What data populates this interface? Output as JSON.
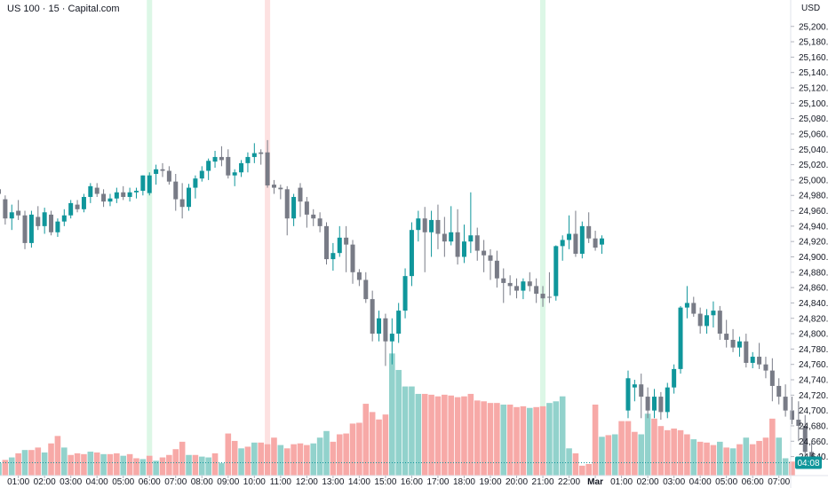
{
  "header": {
    "symbol": "US 100 · 15 · Capital.com",
    "currency": "USD"
  },
  "current_price": {
    "label": "04:08",
    "value": 24632,
    "color": "#0f969b"
  },
  "colors": {
    "up": "#0f969b",
    "down": "#787b86",
    "volume_up": "#92d2cc",
    "volume_down": "#f7a9a7",
    "session_highlight_up": "#dcf7e6",
    "session_highlight_down": "#fde1e1"
  },
  "chart_data": {
    "type": "candlestick",
    "title": "",
    "xlabel": "",
    "ylabel": "",
    "interval": "15",
    "ylim": [
      24610,
      25230
    ],
    "yticks": [
      24640,
      24660,
      24680,
      24700,
      24720,
      24740,
      24760,
      24780,
      24800,
      24820,
      24840,
      24860,
      24880,
      24900,
      24920,
      24940,
      24960,
      24980,
      25000,
      25020,
      25040,
      25060,
      25080,
      25100,
      25120,
      25140,
      25160,
      25180,
      25200
    ],
    "ytick_labels": [
      "24,640.0",
      "24,660.0",
      "24,680.0",
      "24,700.0",
      "24,720.0",
      "24,740.0",
      "24,760.0",
      "24,780.0",
      "24,800.0",
      "24,820.0",
      "24,840.0",
      "24,860.0",
      "24,880.0",
      "24,900.0",
      "24,920.0",
      "24,940.0",
      "24,960.0",
      "24,980.0",
      "25,000.0",
      "25,020.0",
      "25,040.0",
      "25,060.0",
      "25,080.0",
      "25,100.0",
      "25,120.0",
      "25,140.0",
      "25,160.0",
      "25,180.0",
      "25,200.0"
    ],
    "xticks": [
      {
        "label": "01:00",
        "bar": 3
      },
      {
        "label": "02:00",
        "bar": 7
      },
      {
        "label": "03:00",
        "bar": 11
      },
      {
        "label": "04:00",
        "bar": 15
      },
      {
        "label": "05:00",
        "bar": 19
      },
      {
        "label": "06:00",
        "bar": 23
      },
      {
        "label": "07:00",
        "bar": 27
      },
      {
        "label": "08:00",
        "bar": 31
      },
      {
        "label": "09:00",
        "bar": 35
      },
      {
        "label": "10:00",
        "bar": 39
      },
      {
        "label": "11:00",
        "bar": 43
      },
      {
        "label": "12:00",
        "bar": 47
      },
      {
        "label": "13:00",
        "bar": 51
      },
      {
        "label": "14:00",
        "bar": 55
      },
      {
        "label": "15:00",
        "bar": 59
      },
      {
        "label": "16:00",
        "bar": 63
      },
      {
        "label": "17:00",
        "bar": 67
      },
      {
        "label": "18:00",
        "bar": 71
      },
      {
        "label": "19:00",
        "bar": 75
      },
      {
        "label": "20:00",
        "bar": 79
      },
      {
        "label": "21:00",
        "bar": 83
      },
      {
        "label": "22:00",
        "bar": 87
      },
      {
        "label": "Mar",
        "bar": 91,
        "bold": true
      },
      {
        "label": "01:00",
        "bar": 95
      },
      {
        "label": "02:00",
        "bar": 99
      },
      {
        "label": "03:00",
        "bar": 103
      },
      {
        "label": "04:00",
        "bar": 107
      },
      {
        "label": "05:00",
        "bar": 111
      },
      {
        "label": "06:00",
        "bar": 115
      },
      {
        "label": "07:00",
        "bar": 119
      }
    ],
    "session_highlights": [
      {
        "bar": 23,
        "kind": "up"
      },
      {
        "bar": 41,
        "kind": "down"
      },
      {
        "bar": 83,
        "kind": "up"
      }
    ],
    "candles": [
      [
        24988,
        24996,
        24960,
        24982
      ],
      [
        24975,
        24980,
        24942,
        24950
      ],
      [
        24950,
        24968,
        24935,
        24958
      ],
      [
        24960,
        24974,
        24948,
        24954
      ],
      [
        24954,
        24960,
        24910,
        24918
      ],
      [
        24918,
        24960,
        24912,
        24955
      ],
      [
        24952,
        24966,
        24935,
        24940
      ],
      [
        24940,
        24964,
        24930,
        24958
      ],
      [
        24955,
        24960,
        24928,
        24932
      ],
      [
        24932,
        24950,
        24926,
        24946
      ],
      [
        24946,
        24962,
        24940,
        24954
      ],
      [
        24954,
        24974,
        24950,
        24970
      ],
      [
        24968,
        24974,
        24958,
        24962
      ],
      [
        24962,
        24982,
        24958,
        24978
      ],
      [
        24978,
        24996,
        24970,
        24992
      ],
      [
        24990,
        24996,
        24978,
        24982
      ],
      [
        24982,
        24988,
        24965,
        24972
      ],
      [
        24972,
        24982,
        24966,
        24976
      ],
      [
        24976,
        24990,
        24970,
        24984
      ],
      [
        24984,
        24992,
        24974,
        24978
      ],
      [
        24978,
        24990,
        24972,
        24984
      ],
      [
        24984,
        24990,
        24976,
        24986
      ],
      [
        24986,
        25006,
        24980,
        25006
      ],
      [
        24983,
        25010,
        24980,
        25006
      ],
      [
        25008,
        25020,
        24994,
        25014
      ],
      [
        25014,
        25022,
        25004,
        25012
      ],
      [
        25012,
        25018,
        24994,
        24998
      ],
      [
        24998,
        25008,
        24960,
        24975
      ],
      [
        24975,
        24996,
        24950,
        24965
      ],
      [
        24965,
        24995,
        24960,
        24990
      ],
      [
        24990,
        25006,
        24976,
        25002
      ],
      [
        25002,
        25018,
        24998,
        25012
      ],
      [
        25012,
        25028,
        25000,
        25025
      ],
      [
        25024,
        25038,
        25016,
        25030
      ],
      [
        25030,
        25044,
        25018,
        25026
      ],
      [
        25030,
        25040,
        25002,
        25006
      ],
      [
        25006,
        25014,
        24992,
        25010
      ],
      [
        25010,
        25026,
        25004,
        25022
      ],
      [
        25022,
        25036,
        25010,
        25030
      ],
      [
        25030,
        25048,
        25022,
        25035
      ],
      [
        25036,
        25040,
        25020,
        25034
      ],
      [
        25036,
        25052,
        24990,
        24993
      ],
      [
        24994,
        25000,
        24982,
        24990
      ],
      [
        24990,
        24994,
        24975,
        24988
      ],
      [
        24988,
        24992,
        24928,
        24950
      ],
      [
        24950,
        24982,
        24940,
        24978
      ],
      [
        24990,
        24996,
        24952,
        24972
      ],
      [
        24972,
        24978,
        24938,
        24955
      ],
      [
        24955,
        24962,
        24940,
        24950
      ],
      [
        24950,
        24958,
        24932,
        24940
      ],
      [
        24940,
        24945,
        24890,
        24897
      ],
      [
        24897,
        24918,
        24882,
        24905
      ],
      [
        24905,
        24940,
        24900,
        24925
      ],
      [
        24925,
        24940,
        24880,
        24916
      ],
      [
        24916,
        24922,
        24865,
        24880
      ],
      [
        24880,
        24884,
        24862,
        24870
      ],
      [
        24870,
        24880,
        24840,
        24845
      ],
      [
        24845,
        24856,
        24790,
        24800
      ],
      [
        24800,
        24830,
        24790,
        24820
      ],
      [
        24820,
        24826,
        24758,
        24790
      ],
      [
        24790,
        24820,
        24760,
        24800
      ],
      [
        24800,
        24840,
        24788,
        24830
      ],
      [
        24830,
        24885,
        24820,
        24875
      ],
      [
        24875,
        24945,
        24862,
        24935
      ],
      [
        24935,
        24960,
        24920,
        24950
      ],
      [
        24950,
        24965,
        24880,
        24932
      ],
      [
        24932,
        24960,
        24900,
        24948
      ],
      [
        24948,
        24968,
        24910,
        24930
      ],
      [
        24930,
        24952,
        24900,
        24920
      ],
      [
        24920,
        24966,
        24915,
        24932
      ],
      [
        24932,
        24962,
        24890,
        24900
      ],
      [
        24900,
        24942,
        24892,
        24920
      ],
      [
        24920,
        24984,
        24905,
        24928
      ],
      [
        24928,
        24938,
        24895,
        24908
      ],
      [
        24908,
        24922,
        24880,
        24902
      ],
      [
        24902,
        24910,
        24870,
        24895
      ],
      [
        24895,
        24908,
        24860,
        24872
      ],
      [
        24872,
        24885,
        24840,
        24866
      ],
      [
        24866,
        24876,
        24850,
        24862
      ],
      [
        24862,
        24872,
        24846,
        24856
      ],
      [
        24856,
        24872,
        24845,
        24868
      ],
      [
        24868,
        24880,
        24855,
        24862
      ],
      [
        24862,
        24872,
        24840,
        24852
      ],
      [
        24852,
        24862,
        24835,
        24846
      ],
      [
        24848,
        24880,
        24840,
        24847
      ],
      [
        24849,
        24915,
        24843,
        24914
      ],
      [
        24914,
        24928,
        24895,
        24922
      ],
      [
        24922,
        24954,
        24910,
        24930
      ],
      [
        24930,
        24960,
        24900,
        24904
      ],
      [
        24904,
        24946,
        24898,
        24940
      ],
      [
        24940,
        24958,
        24918,
        24924
      ],
      [
        24924,
        24934,
        24908,
        24912
      ],
      [
        24916,
        24928,
        24904,
        24924
      ]
    ],
    "candles_segment2_start_bar": 96,
    "candles_segment2": [
      [
        24700,
        24752,
        24690,
        24742
      ],
      [
        24730,
        24740,
        24712,
        24734
      ],
      [
        24734,
        24748,
        24690,
        24718
      ],
      [
        24718,
        24730,
        24690,
        24700
      ],
      [
        24700,
        24728,
        24690,
        24718
      ],
      [
        24718,
        24724,
        24688,
        24698
      ],
      [
        24698,
        24736,
        24690,
        24730
      ],
      [
        24730,
        24760,
        24722,
        24754
      ],
      [
        24754,
        24836,
        24748,
        24834
      ],
      [
        24834,
        24862,
        24820,
        24840
      ],
      [
        24840,
        24848,
        24822,
        24826
      ],
      [
        24826,
        24834,
        24800,
        24810
      ],
      [
        24810,
        24832,
        24800,
        24824
      ],
      [
        24824,
        24842,
        24808,
        24830
      ],
      [
        24830,
        24836,
        24792,
        24800
      ],
      [
        24800,
        24818,
        24782,
        24792
      ],
      [
        24792,
        24806,
        24776,
        24782
      ],
      [
        24782,
        24796,
        24770,
        24790
      ],
      [
        24790,
        24800,
        24756,
        24762
      ],
      [
        24762,
        24776,
        24755,
        24770
      ],
      [
        24770,
        24788,
        24754,
        24760
      ],
      [
        24760,
        24770,
        24742,
        24752
      ],
      [
        24752,
        24768,
        24712,
        24732
      ],
      [
        24732,
        24742,
        24708,
        24718
      ],
      [
        24718,
        24734,
        24692,
        24700
      ],
      [
        24700,
        24718,
        24682,
        24688
      ],
      [
        24688,
        24712,
        24660,
        24680
      ],
      [
        24680,
        24694,
        24640,
        24646
      ],
      [
        24646,
        24658,
        24628,
        24632
      ]
    ],
    "volume": [
      {
        "v": 15,
        "up": true
      },
      {
        "v": 19,
        "up": false
      },
      {
        "v": 22,
        "up": true
      },
      {
        "v": 27,
        "up": false
      },
      {
        "v": 31,
        "up": true
      },
      {
        "v": 31,
        "up": false
      },
      {
        "v": 34,
        "up": false
      },
      {
        "v": 28,
        "up": true
      },
      {
        "v": 39,
        "up": false
      },
      {
        "v": 48,
        "up": false
      },
      {
        "v": 34,
        "up": true
      },
      {
        "v": 25,
        "up": false
      },
      {
        "v": 27,
        "up": false
      },
      {
        "v": 26,
        "up": false
      },
      {
        "v": 29,
        "up": true
      },
      {
        "v": 28,
        "up": false
      },
      {
        "v": 26,
        "up": true
      },
      {
        "v": 26,
        "up": false
      },
      {
        "v": 27,
        "up": false
      },
      {
        "v": 24,
        "up": true
      },
      {
        "v": 26,
        "up": false
      },
      {
        "v": 21,
        "up": false
      },
      {
        "v": 20,
        "up": true
      },
      {
        "v": 24,
        "up": false
      },
      {
        "v": 18,
        "up": true
      },
      {
        "v": 22,
        "up": false
      },
      {
        "v": 25,
        "up": false
      },
      {
        "v": 32,
        "up": false
      },
      {
        "v": 41,
        "up": false
      },
      {
        "v": 25,
        "up": true
      },
      {
        "v": 25,
        "up": false
      },
      {
        "v": 23,
        "up": true
      },
      {
        "v": 22,
        "up": true
      },
      {
        "v": 27,
        "up": false
      },
      {
        "v": 15,
        "up": true
      },
      {
        "v": 51,
        "up": false
      },
      {
        "v": 42,
        "up": false
      },
      {
        "v": 33,
        "up": true
      },
      {
        "v": 35,
        "up": false
      },
      {
        "v": 40,
        "up": true
      },
      {
        "v": 40,
        "up": false
      },
      {
        "v": 38,
        "up": false
      },
      {
        "v": 46,
        "up": false
      },
      {
        "v": 37,
        "up": true
      },
      {
        "v": 33,
        "up": false
      },
      {
        "v": 38,
        "up": false
      },
      {
        "v": 39,
        "up": false
      },
      {
        "v": 37,
        "up": false
      },
      {
        "v": 39,
        "up": true
      },
      {
        "v": 46,
        "up": true
      },
      {
        "v": 54,
        "up": true
      },
      {
        "v": 41,
        "up": false
      },
      {
        "v": 50,
        "up": false
      },
      {
        "v": 51,
        "up": false
      },
      {
        "v": 63,
        "up": false
      },
      {
        "v": 64,
        "up": false
      },
      {
        "v": 87,
        "up": false
      },
      {
        "v": 77,
        "up": false
      },
      {
        "v": 68,
        "up": false
      },
      {
        "v": 74,
        "up": false
      },
      {
        "v": 148,
        "up": true
      },
      {
        "v": 128,
        "up": true
      },
      {
        "v": 108,
        "up": true
      },
      {
        "v": 108,
        "up": true
      },
      {
        "v": 99,
        "up": true
      },
      {
        "v": 99,
        "up": false
      },
      {
        "v": 98,
        "up": false
      },
      {
        "v": 96,
        "up": false
      },
      {
        "v": 98,
        "up": false
      },
      {
        "v": 97,
        "up": false
      },
      {
        "v": 95,
        "up": false
      },
      {
        "v": 96,
        "up": false
      },
      {
        "v": 99,
        "up": false
      },
      {
        "v": 91,
        "up": false
      },
      {
        "v": 90,
        "up": false
      },
      {
        "v": 88,
        "up": false
      },
      {
        "v": 88,
        "up": false
      },
      {
        "v": 86,
        "up": true
      },
      {
        "v": 86,
        "up": false
      },
      {
        "v": 83,
        "up": false
      },
      {
        "v": 84,
        "up": false
      },
      {
        "v": 82,
        "up": true
      },
      {
        "v": 83,
        "up": false
      },
      {
        "v": 84,
        "up": false
      },
      {
        "v": 88,
        "up": true
      },
      {
        "v": 90,
        "up": true
      },
      {
        "v": 96,
        "up": true
      },
      {
        "v": 33,
        "up": true
      },
      {
        "v": 27,
        "up": false
      },
      {
        "v": 12,
        "up": false
      },
      {
        "v": 14,
        "up": false
      },
      {
        "v": 86,
        "up": false
      },
      {
        "v": 47,
        "up": true
      },
      {
        "v": 49,
        "up": false
      },
      {
        "v": 50,
        "up": true
      },
      {
        "v": 66,
        "up": false
      },
      {
        "v": 66,
        "up": false
      },
      {
        "v": 53,
        "up": false
      },
      {
        "v": 50,
        "up": true
      },
      {
        "v": 75,
        "up": true
      },
      {
        "v": 69,
        "up": false
      },
      {
        "v": 60,
        "up": false
      },
      {
        "v": 55,
        "up": false
      },
      {
        "v": 57,
        "up": false
      },
      {
        "v": 55,
        "up": false
      },
      {
        "v": 50,
        "up": false
      },
      {
        "v": 44,
        "up": true
      },
      {
        "v": 41,
        "up": false
      },
      {
        "v": 40,
        "up": false
      },
      {
        "v": 37,
        "up": false
      },
      {
        "v": 41,
        "up": true
      },
      {
        "v": 34,
        "up": false
      },
      {
        "v": 33,
        "up": true
      },
      {
        "v": 38,
        "up": false
      },
      {
        "v": 46,
        "up": true
      },
      {
        "v": 38,
        "up": false
      },
      {
        "v": 42,
        "up": false
      },
      {
        "v": 46,
        "up": false
      },
      {
        "v": 69,
        "up": false
      },
      {
        "v": 46,
        "up": true
      },
      {
        "v": 21,
        "up": true
      },
      {
        "v": 17,
        "up": false
      }
    ]
  }
}
